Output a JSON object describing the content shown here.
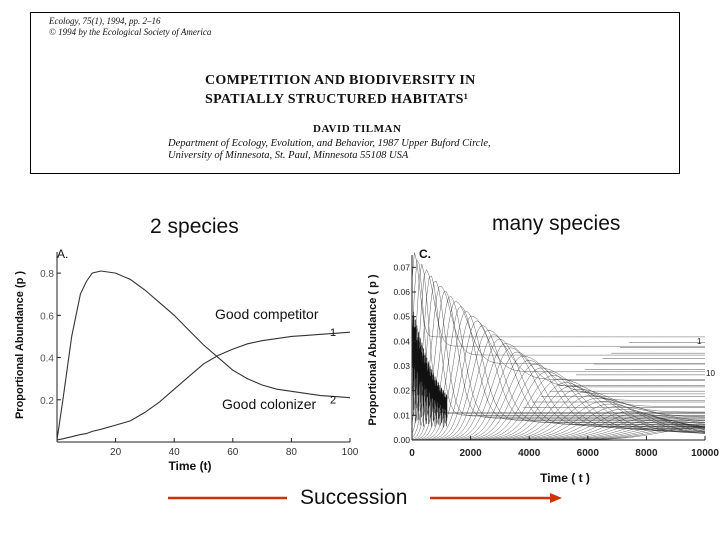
{
  "paper": {
    "journal_line1": "Ecology, 75(1), 1994, pp. 2–16",
    "journal_line2": "© 1994 by the Ecological Society of America",
    "title_line1": "COMPETITION AND BIODIVERSITY IN",
    "title_line2": "SPATIALLY STRUCTURED HABITATS¹",
    "author": "DAVID TILMAN",
    "affiliation_line1": "Department of Ecology, Evolution, and Behavior, 1987 Upper Buford Circle,",
    "affiliation_line2": "University of Minnesota, St. Paul, Minnesota 55108 USA"
  },
  "slide": {
    "left_heading": "2 species",
    "right_heading": "many species",
    "label_competitor": "Good competitor",
    "label_colonizer": "Good colonizer",
    "succession": "Succession",
    "arrow_color": "#cc3300"
  },
  "chart_data": [
    {
      "type": "line",
      "panel_label": "A.",
      "xlabel": "Time (t)",
      "ylabel": "Proportional Abundance (p )",
      "ylabel_sub": "i",
      "xlim": [
        0,
        100
      ],
      "ylim": [
        0,
        0.9
      ],
      "xticks": [
        "20",
        "40",
        "60",
        "80",
        "100"
      ],
      "yticks": [
        "0.2",
        "0.4",
        "0.6",
        "0.8"
      ],
      "x": [
        0,
        2,
        5,
        8,
        10,
        12,
        15,
        20,
        25,
        30,
        35,
        40,
        45,
        50,
        55,
        60,
        65,
        70,
        75,
        80,
        85,
        90,
        95,
        100
      ],
      "series": [
        {
          "label": "1",
          "values": [
            0.01,
            0.015,
            0.025,
            0.035,
            0.04,
            0.05,
            0.06,
            0.08,
            0.1,
            0.14,
            0.19,
            0.25,
            0.31,
            0.37,
            0.41,
            0.44,
            0.465,
            0.48,
            0.49,
            0.5,
            0.505,
            0.51,
            0.515,
            0.52
          ]
        },
        {
          "label": "2",
          "values": [
            0.01,
            0.2,
            0.5,
            0.7,
            0.76,
            0.8,
            0.81,
            0.8,
            0.77,
            0.72,
            0.66,
            0.6,
            0.53,
            0.46,
            0.4,
            0.34,
            0.3,
            0.27,
            0.25,
            0.24,
            0.23,
            0.22,
            0.215,
            0.21
          ]
        }
      ]
    },
    {
      "type": "line",
      "panel_label": "C.",
      "xlabel": "Time ( t )",
      "ylabel": "Proportional Abundance ( p )",
      "ylabel_sub": "i",
      "xlim": [
        0,
        10000
      ],
      "ylim": [
        0,
        0.075
      ],
      "xticks": [
        "0",
        "2000",
        "4000",
        "6000",
        "8000",
        "10000"
      ],
      "yticks": [
        "0.00",
        "0.01",
        "0.02",
        "0.03",
        "0.04",
        "0.05",
        "0.06",
        "0.07"
      ],
      "line_end_labels": [
        "1",
        "10"
      ],
      "series_count": 50
    }
  ]
}
